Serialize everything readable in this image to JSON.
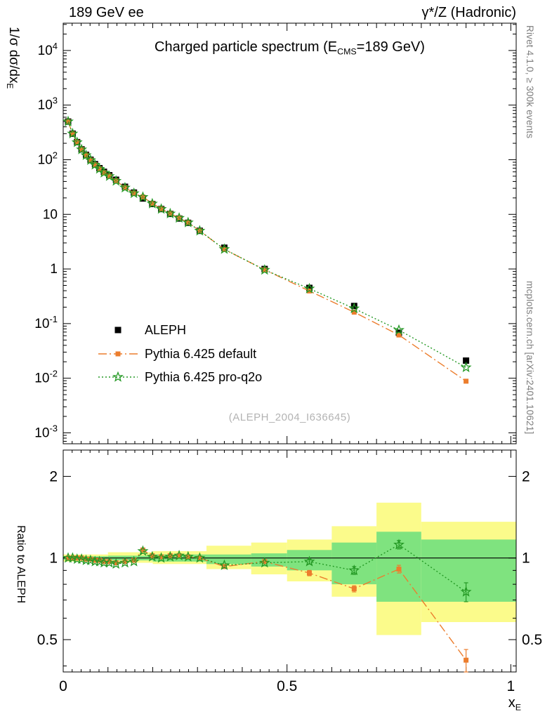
{
  "header": {
    "left": "189 GeV ee",
    "right": "γ*/Z (Hadronic)"
  },
  "side_notes": {
    "right_top": "Rivet 4.1.0, ≥ 300k events",
    "right_bottom": "mcplots.cern.ch [arXiv:2401.10621]"
  },
  "watermark": "(ALEPH_2004_I636645)",
  "labels": {
    "title_pre": "Charged particle spectrum (E",
    "title_sub": "CMS",
    "title_post": "=189 GeV)",
    "ylabel_main_pre": "1/σ  dσ/dx",
    "ylabel_main_sub": "E",
    "ylabel_ratio": "Ratio to ALEPH",
    "xlabel_pre": "x",
    "xlabel_sub": "E"
  },
  "chart_data": {
    "type": "line",
    "title": "Charged particle spectrum (E_CMS = 189 GeV)",
    "xlabel": "x_E",
    "ylabel": "1/σ dσ/dx_E",
    "ratio_label": "Ratio to ALEPH",
    "grid": false,
    "legend_position": "inside-left",
    "xlim": [
      0,
      1.012
    ],
    "ylim_main": [
      0.000631,
      31623
    ],
    "ylim_ratio": [
      0.38,
      2.5
    ],
    "x_major_ticks": [
      0,
      0.5,
      1
    ],
    "x_tick_labels": [
      "0",
      "0.5",
      "1"
    ],
    "ratio_tick_values": [
      0.5,
      1,
      2
    ],
    "ratio_tick_labels": [
      "0.5",
      "1",
      "2"
    ],
    "ratio_minor_ticks": [
      0.4,
      0.6,
      0.7,
      0.8,
      0.9
    ],
    "x": [
      0.011,
      0.021,
      0.031,
      0.041,
      0.051,
      0.061,
      0.071,
      0.081,
      0.091,
      0.103,
      0.118,
      0.138,
      0.158,
      0.178,
      0.199,
      0.219,
      0.239,
      0.259,
      0.279,
      0.305,
      0.36,
      0.45,
      0.55,
      0.65,
      0.75,
      0.9
    ],
    "series": [
      {
        "name": "ALEPH",
        "role": "reference-data",
        "color": "#000000",
        "marker": "square",
        "marker_size": 9,
        "line": "none",
        "values": [
          500,
          300,
          210,
          155,
          123,
          100,
          83,
          70,
          60,
          52,
          43,
          32,
          25,
          19.5,
          15.5,
          12.5,
          10.2,
          8.4,
          7.0,
          5.0,
          2.45,
          1.0,
          0.45,
          0.21,
          0.068,
          0.021
        ]
      },
      {
        "name": "Pythia 6.425 default",
        "role": "mc-prediction",
        "color": "#ec7d2d",
        "marker": "square",
        "marker_size": 7,
        "line": "dashdot",
        "ratio_to_data": [
          1.0,
          1.0,
          1.0,
          1.0,
          0.99,
          0.99,
          0.98,
          0.98,
          0.97,
          0.97,
          0.96,
          0.97,
          0.98,
          1.07,
          1.02,
          1.01,
          1.02,
          1.02,
          1.01,
          1.0,
          0.93,
          0.97,
          0.88,
          0.77,
          0.91,
          0.42
        ],
        "ratio_err": [
          0,
          0,
          0,
          0,
          0,
          0,
          0,
          0,
          0,
          0,
          0,
          0,
          0,
          0,
          0,
          0,
          0,
          0,
          0,
          0,
          0.01,
          0.01,
          0.02,
          0.02,
          0.03,
          0.04
        ]
      },
      {
        "name": "Pythia 6.425 pro-q2o",
        "role": "mc-prediction",
        "color": "#259925",
        "marker": "star",
        "marker_size": 13,
        "line": "dotted",
        "ratio_to_data": [
          1.0,
          1.0,
          0.99,
          0.99,
          0.98,
          0.98,
          0.97,
          0.97,
          0.96,
          0.96,
          0.95,
          0.96,
          0.97,
          1.06,
          1.01,
          1.0,
          1.01,
          1.02,
          1.01,
          1.0,
          0.94,
          0.96,
          0.97,
          0.9,
          1.12,
          0.75
        ],
        "ratio_err": [
          0,
          0,
          0,
          0,
          0,
          0,
          0,
          0,
          0,
          0,
          0,
          0,
          0,
          0,
          0,
          0,
          0,
          0,
          0,
          0,
          0.01,
          0.01,
          0.02,
          0.03,
          0.04,
          0.06
        ]
      }
    ],
    "uncertainty_bands": {
      "yellow_color": "#fbfb8b",
      "green_color": "#7fe37f",
      "segments": [
        {
          "x0": 0.0,
          "x1": 0.1,
          "yellow": [
            0.97,
            1.03
          ],
          "green": [
            0.985,
            1.015
          ]
        },
        {
          "x0": 0.1,
          "x1": 0.2,
          "yellow": [
            0.96,
            1.05
          ],
          "green": [
            0.98,
            1.02
          ]
        },
        {
          "x0": 0.2,
          "x1": 0.32,
          "yellow": [
            0.95,
            1.06
          ],
          "green": [
            0.97,
            1.03
          ]
        },
        {
          "x0": 0.32,
          "x1": 0.42,
          "yellow": [
            0.91,
            1.11
          ],
          "green": [
            0.95,
            1.03
          ]
        },
        {
          "x0": 0.42,
          "x1": 0.5,
          "yellow": [
            0.87,
            1.14
          ],
          "green": [
            0.93,
            1.04
          ]
        },
        {
          "x0": 0.5,
          "x1": 0.6,
          "yellow": [
            0.82,
            1.17
          ],
          "green": [
            0.9,
            1.07
          ]
        },
        {
          "x0": 0.6,
          "x1": 0.7,
          "yellow": [
            0.72,
            1.31
          ],
          "green": [
            0.8,
            1.14
          ]
        },
        {
          "x0": 0.7,
          "x1": 0.8,
          "yellow": [
            0.52,
            1.6
          ],
          "green": [
            0.69,
            1.25
          ]
        },
        {
          "x0": 0.8,
          "x1": 1.012,
          "yellow": [
            0.58,
            1.36
          ],
          "green": [
            0.69,
            1.17
          ]
        }
      ]
    }
  }
}
